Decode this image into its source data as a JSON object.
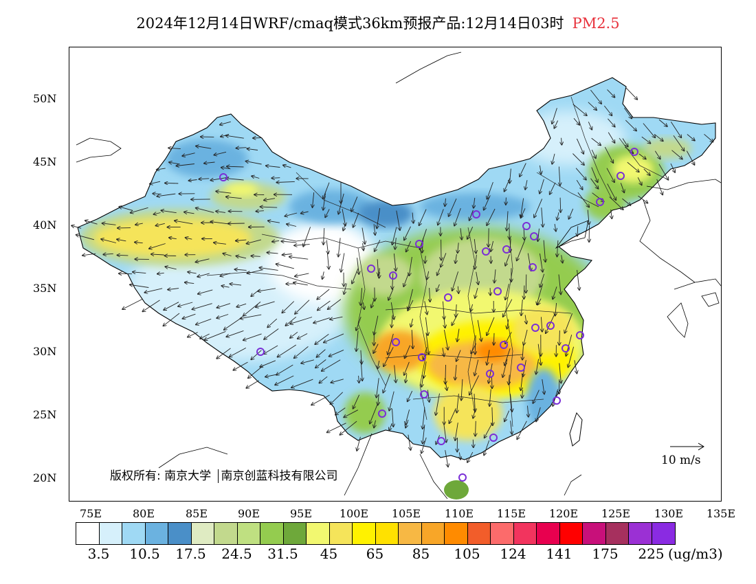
{
  "title": {
    "main": "2024年12月14日WRF/cmaq模式36km预报产品:12月14日03时",
    "pollutant": "PM2.5"
  },
  "axes": {
    "lat_labels": [
      "50N",
      "45N",
      "40N",
      "35N",
      "30N",
      "25N",
      "20N"
    ],
    "lon_labels": [
      "75E",
      "80E",
      "85E",
      "90E",
      "95E",
      "100E",
      "105E",
      "110E",
      "115E",
      "120E",
      "125E",
      "130E",
      "135E"
    ]
  },
  "copyright": {
    "label": "版权所有:",
    "org1": "南京大学",
    "org2": "南京创蓝科技有限公司"
  },
  "wind_scale": {
    "label": "10 m/s"
  },
  "legend": {
    "colors": [
      "#ffffff",
      "#d6f0fb",
      "#9fd9f4",
      "#6bb2e0",
      "#4a8fc8",
      "#dfebc2",
      "#c2d98d",
      "#bfe081",
      "#94cc4f",
      "#6ea83a",
      "#f2f870",
      "#f5e45a",
      "#fff200",
      "#ffe100",
      "#f7b844",
      "#f8a628",
      "#ff8b00",
      "#f25d2a",
      "#fc6b6b",
      "#f2345e",
      "#e8004f",
      "#ff0000",
      "#c8107a",
      "#a6305e",
      "#9b30d4",
      "#8a2be2"
    ],
    "labels": [
      "3.5",
      "10.5",
      "17.5",
      "24.5",
      "31.5",
      "45",
      "65",
      "85",
      "105",
      "124",
      "141",
      "175",
      "225"
    ],
    "unit": "(ug/m3)"
  },
  "cities_count": 28
}
